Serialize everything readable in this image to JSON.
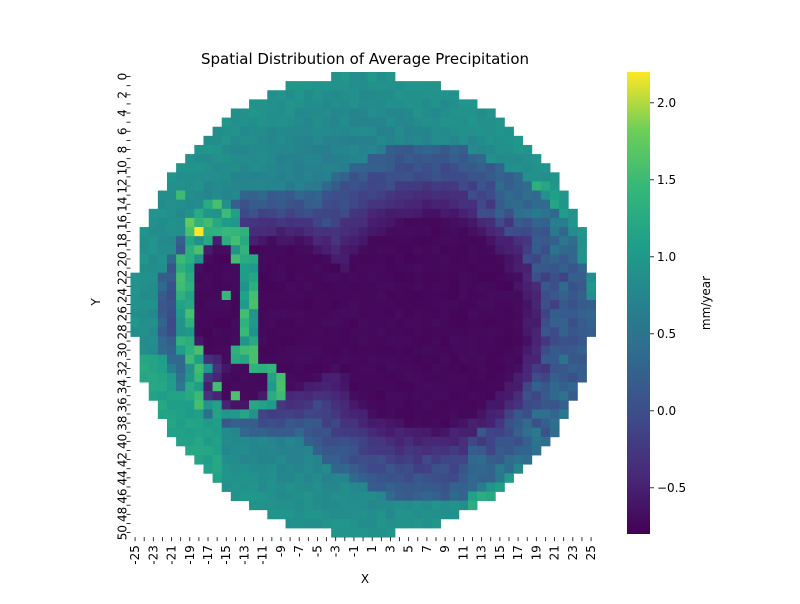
{
  "chart_data": {
    "type": "heatmap",
    "title": "Spatial Distribution of Average Precipitation",
    "xlabel": "X",
    "ylabel": "Y",
    "x_range": [
      -25,
      25
    ],
    "y_range": [
      0,
      50
    ],
    "x_tick_labels": [
      "-25",
      "-23",
      "-21",
      "-19",
      "-17",
      "-15",
      "-13",
      "-11",
      "-9",
      "-7",
      "-5",
      "-3",
      "-1",
      "1",
      "3",
      "5",
      "7",
      "9",
      "11",
      "13",
      "15",
      "17",
      "19",
      "21",
      "23",
      "25"
    ],
    "y_tick_labels": [
      "0",
      "2",
      "4",
      "6",
      "8",
      "10",
      "12",
      "14",
      "16",
      "18",
      "20",
      "22",
      "24",
      "26",
      "28",
      "30",
      "32",
      "34",
      "36",
      "38",
      "40",
      "42",
      "44",
      "46",
      "48",
      "50"
    ],
    "colorbar": {
      "label": "mm/year",
      "colormap": "viridis",
      "vmin": -0.8,
      "vmax": 2.2,
      "tick_labels": [
        "−0.5",
        "0.0",
        "0.5",
        "1.0",
        "1.5",
        "2.0"
      ],
      "tick_values": [
        -0.5,
        0.0,
        0.5,
        1.0,
        1.5,
        2.0
      ]
    },
    "mask": "circular disk, radius 25 cells, outside = blank",
    "features": {
      "continent_interior_value": -0.75,
      "continent_coastal_value": -0.35,
      "ocean_edge_value": 0.85,
      "peninsula_max_value": 2.2,
      "peninsula_peak_cells": [
        [
          -18,
          17
        ],
        [
          -19,
          16
        ],
        [
          -18,
          19
        ],
        [
          -20,
          13
        ],
        [
          -14,
          35
        ],
        [
          -16,
          34
        ],
        [
          -15,
          24
        ]
      ]
    }
  }
}
